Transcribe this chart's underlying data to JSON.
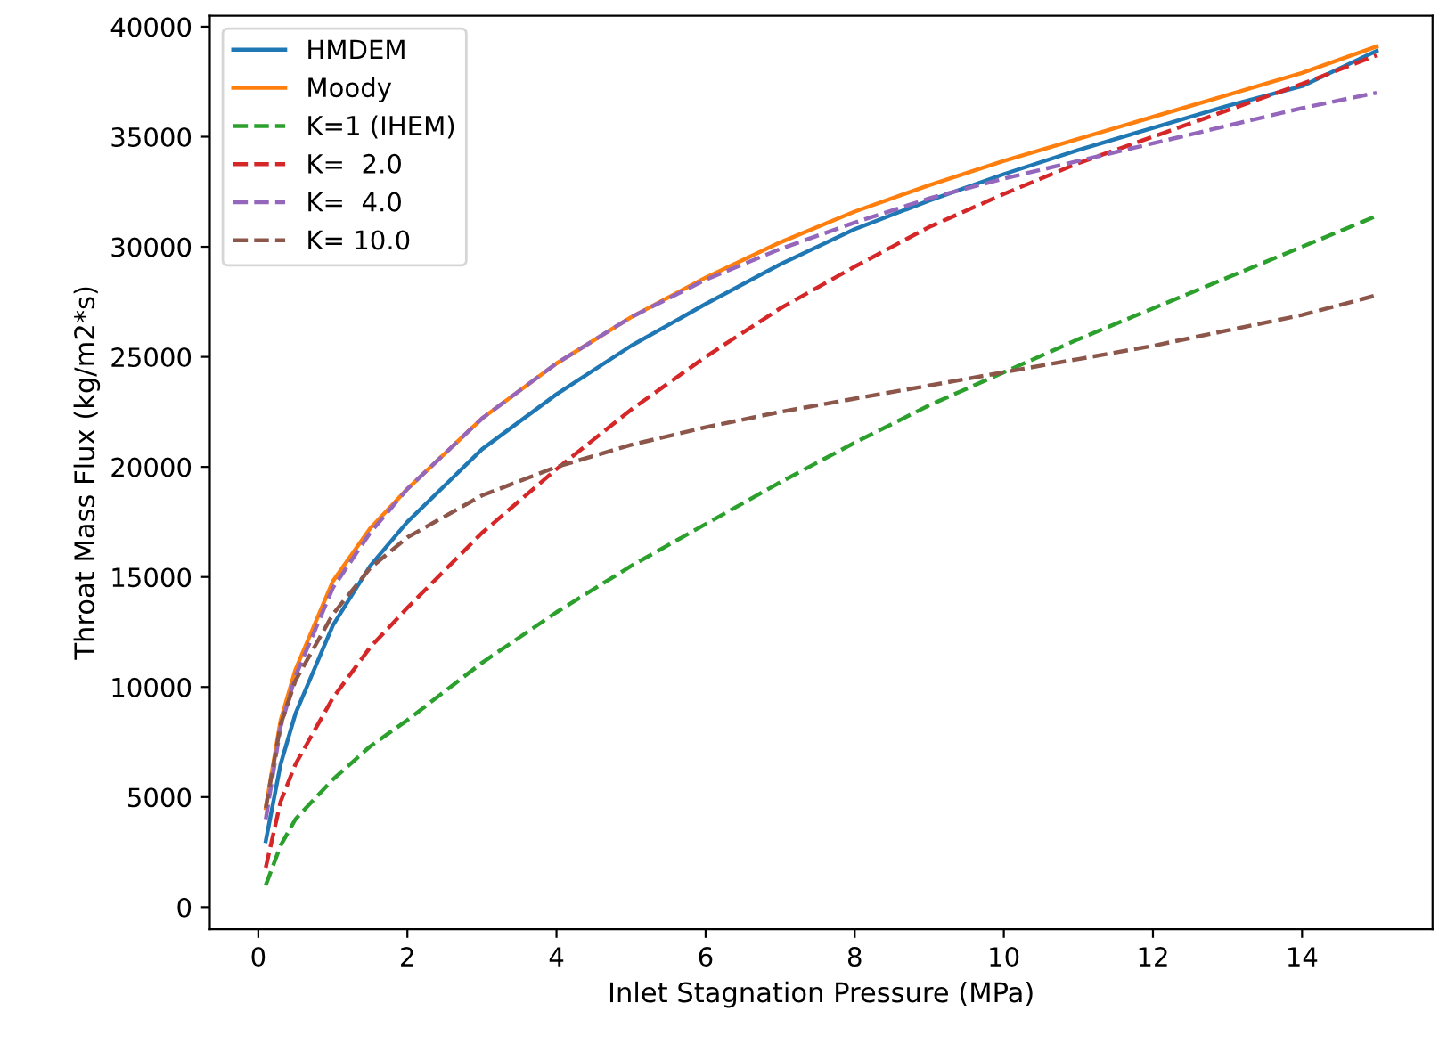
{
  "chart_data": {
    "type": "line",
    "xlabel": "Inlet Stagnation Pressure (MPa)",
    "ylabel": "Throat Mass Flux (kg/m2*s)",
    "x": [
      0.1,
      0.3,
      0.5,
      1,
      1.5,
      2,
      3,
      4,
      5,
      6,
      7,
      8,
      9,
      10,
      11,
      12,
      13,
      14,
      15
    ],
    "xlim": [
      -0.65,
      15.75
    ],
    "xticks": [
      0,
      2,
      4,
      6,
      8,
      10,
      12,
      14
    ],
    "ylim": [
      -1000,
      40500
    ],
    "yticks": [
      0,
      5000,
      10000,
      15000,
      20000,
      25000,
      30000,
      35000,
      40000
    ],
    "grid": false,
    "legend": "top left",
    "series": [
      {
        "name": "HMDEM",
        "color": "#1f77b4",
        "line_style": "solid",
        "values": [
          3000,
          6500,
          8800,
          12800,
          15500,
          17500,
          20800,
          23300,
          25500,
          27400,
          29200,
          30800,
          32100,
          33300,
          34400,
          35400,
          36400,
          37300,
          38900
        ]
      },
      {
        "name": "Moody",
        "color": "#ff7f0e",
        "line_style": "solid",
        "values": [
          4500,
          8500,
          10800,
          14800,
          17200,
          19000,
          22200,
          24700,
          26800,
          28600,
          30200,
          31600,
          32800,
          33900,
          34900,
          35900,
          36900,
          37900,
          39100
        ]
      },
      {
        "name": "K=1 (IHEM)",
        "color": "#2ca02c",
        "line_style": "dashed",
        "values": [
          1000,
          2800,
          4000,
          5800,
          7300,
          8500,
          11100,
          13400,
          15500,
          17400,
          19300,
          21100,
          22800,
          24300,
          25800,
          27200,
          28600,
          30000,
          31400
        ]
      },
      {
        "name": "K=  2.0",
        "color": "#d62728",
        "line_style": "dashed",
        "values": [
          1800,
          4800,
          6500,
          9500,
          11800,
          13600,
          17000,
          19900,
          22600,
          25000,
          27200,
          29100,
          30900,
          32400,
          33800,
          35000,
          36200,
          37400,
          38700
        ]
      },
      {
        "name": "K=  4.0",
        "color": "#9467bd",
        "line_style": "dashed",
        "values": [
          4000,
          8200,
          10500,
          14500,
          17000,
          19000,
          22200,
          24700,
          26800,
          28500,
          29900,
          31100,
          32200,
          33100,
          33900,
          34700,
          35500,
          36300,
          37000
        ]
      },
      {
        "name": "K= 10.0",
        "color": "#8c564b",
        "line_style": "dashed",
        "values": [
          4500,
          8300,
          10300,
          13300,
          15400,
          16800,
          18700,
          20000,
          21000,
          21800,
          22500,
          23100,
          23700,
          24300,
          24900,
          25500,
          26200,
          26900,
          27800
        ]
      }
    ]
  }
}
